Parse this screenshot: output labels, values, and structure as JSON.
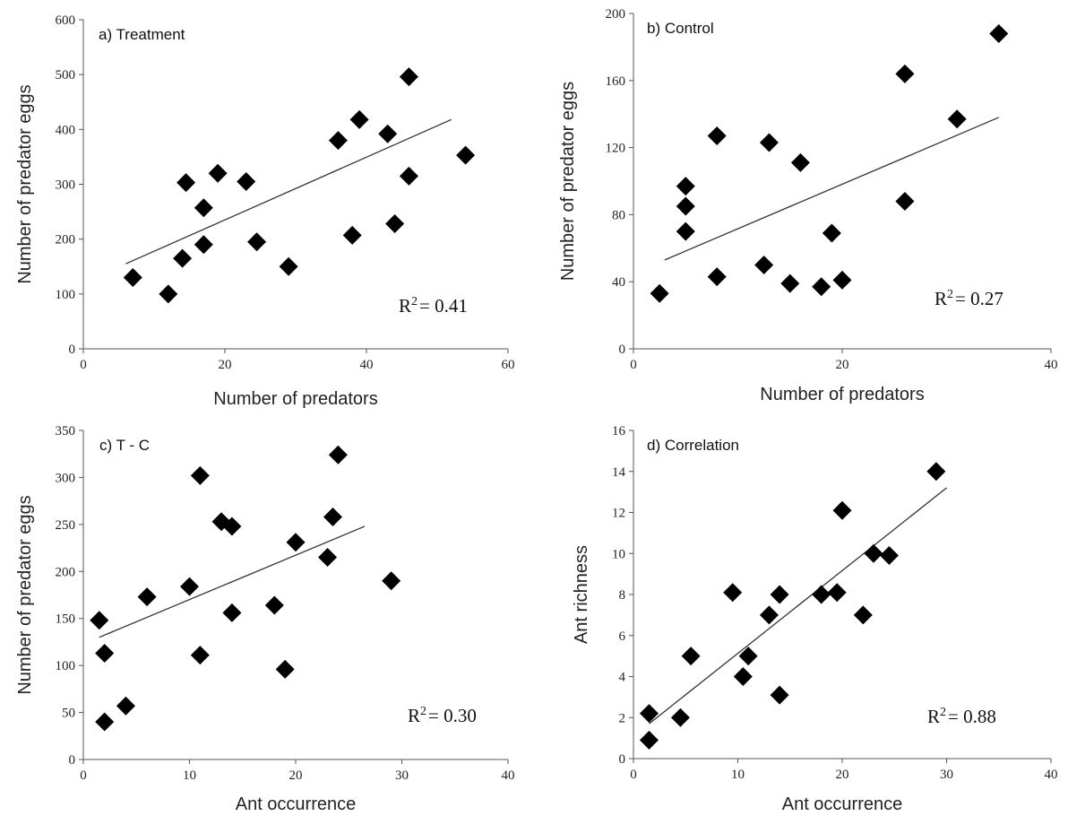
{
  "chart_data": [
    {
      "type": "scatter",
      "title": "a) Treatment",
      "xlabel": "Number of predators",
      "ylabel": "Number of predator eggs",
      "xlim": [
        0,
        60
      ],
      "ylim": [
        0,
        600
      ],
      "xticks": [
        0,
        20,
        40,
        60
      ],
      "yticks": [
        0,
        100,
        200,
        300,
        400,
        500,
        600
      ],
      "r2_label": "R",
      "r2_exp": "2",
      "r2_value": "= 0.41",
      "trendline": {
        "x": [
          6,
          52
        ],
        "y": [
          155,
          418
        ]
      },
      "points": [
        {
          "x": 7,
          "y": 130
        },
        {
          "x": 12,
          "y": 100
        },
        {
          "x": 14,
          "y": 165
        },
        {
          "x": 14.5,
          "y": 303
        },
        {
          "x": 17,
          "y": 190
        },
        {
          "x": 17,
          "y": 257
        },
        {
          "x": 19,
          "y": 320
        },
        {
          "x": 23,
          "y": 305
        },
        {
          "x": 24.5,
          "y": 195
        },
        {
          "x": 29,
          "y": 150
        },
        {
          "x": 36,
          "y": 380
        },
        {
          "x": 38,
          "y": 207
        },
        {
          "x": 39,
          "y": 418
        },
        {
          "x": 43,
          "y": 392
        },
        {
          "x": 44,
          "y": 228
        },
        {
          "x": 46,
          "y": 315
        },
        {
          "x": 46,
          "y": 496
        },
        {
          "x": 54,
          "y": 353
        }
      ]
    },
    {
      "type": "scatter",
      "title": "b) Control",
      "xlabel": "Number of predators",
      "ylabel": "Number of predator eggs",
      "xlim": [
        0,
        40
      ],
      "ylim": [
        0,
        200
      ],
      "xticks": [
        0,
        20,
        40
      ],
      "yticks": [
        0,
        40,
        80,
        120,
        160,
        200
      ],
      "r2_label": "R",
      "r2_exp": "2",
      "r2_value": "= 0.27",
      "trendline": {
        "x": [
          3,
          35
        ],
        "y": [
          53,
          138
        ]
      },
      "points": [
        {
          "x": 2.5,
          "y": 33
        },
        {
          "x": 5,
          "y": 97
        },
        {
          "x": 5,
          "y": 85
        },
        {
          "x": 5,
          "y": 70
        },
        {
          "x": 8,
          "y": 127
        },
        {
          "x": 8,
          "y": 43
        },
        {
          "x": 12.5,
          "y": 50
        },
        {
          "x": 13,
          "y": 123
        },
        {
          "x": 15,
          "y": 39
        },
        {
          "x": 16,
          "y": 111
        },
        {
          "x": 18,
          "y": 37
        },
        {
          "x": 19,
          "y": 69
        },
        {
          "x": 20,
          "y": 41
        },
        {
          "x": 26,
          "y": 164
        },
        {
          "x": 26,
          "y": 88
        },
        {
          "x": 31,
          "y": 137
        },
        {
          "x": 35,
          "y": 188
        }
      ]
    },
    {
      "type": "scatter",
      "title": "c) T - C",
      "xlabel": "Ant occurrence",
      "ylabel": "Number of predator eggs",
      "xlim": [
        0,
        40
      ],
      "ylim": [
        0,
        350
      ],
      "xticks": [
        0,
        10,
        20,
        30,
        40
      ],
      "yticks": [
        0,
        50,
        100,
        150,
        200,
        250,
        300,
        350
      ],
      "r2_label": "R",
      "r2_exp": "2",
      "r2_value": "= 0.30",
      "trendline": {
        "x": [
          1.5,
          26.5
        ],
        "y": [
          130,
          248
        ]
      },
      "points": [
        {
          "x": 1.5,
          "y": 148
        },
        {
          "x": 2,
          "y": 113
        },
        {
          "x": 2,
          "y": 40
        },
        {
          "x": 4,
          "y": 57
        },
        {
          "x": 6,
          "y": 173
        },
        {
          "x": 10,
          "y": 184
        },
        {
          "x": 11,
          "y": 302
        },
        {
          "x": 11,
          "y": 111
        },
        {
          "x": 13,
          "y": 253
        },
        {
          "x": 14,
          "y": 248
        },
        {
          "x": 14,
          "y": 156
        },
        {
          "x": 18,
          "y": 164
        },
        {
          "x": 19,
          "y": 96
        },
        {
          "x": 20,
          "y": 231
        },
        {
          "x": 23,
          "y": 215
        },
        {
          "x": 23.5,
          "y": 258
        },
        {
          "x": 24,
          "y": 324
        },
        {
          "x": 29,
          "y": 190
        }
      ]
    },
    {
      "type": "scatter",
      "title": "d) Correlation",
      "xlabel": "Ant occurrence",
      "ylabel": "Ant richness",
      "xlim": [
        0,
        40
      ],
      "ylim": [
        0,
        16
      ],
      "xticks": [
        0,
        10,
        20,
        30,
        40
      ],
      "yticks": [
        0,
        2,
        4,
        6,
        8,
        10,
        12,
        14,
        16
      ],
      "r2_label": "R",
      "r2_exp": "2",
      "r2_value": "= 0.88",
      "trendline": {
        "x": [
          1.5,
          30
        ],
        "y": [
          1.7,
          13.2
        ]
      },
      "points": [
        {
          "x": 1.5,
          "y": 2.2
        },
        {
          "x": 1.5,
          "y": 0.9
        },
        {
          "x": 4.5,
          "y": 2
        },
        {
          "x": 5.5,
          "y": 5
        },
        {
          "x": 9.5,
          "y": 8.1
        },
        {
          "x": 10.5,
          "y": 4
        },
        {
          "x": 11,
          "y": 5
        },
        {
          "x": 13,
          "y": 7
        },
        {
          "x": 14,
          "y": 8
        },
        {
          "x": 14,
          "y": 3.1
        },
        {
          "x": 18,
          "y": 8
        },
        {
          "x": 19.5,
          "y": 8.1
        },
        {
          "x": 20,
          "y": 12.1
        },
        {
          "x": 22,
          "y": 7
        },
        {
          "x": 23,
          "y": 10
        },
        {
          "x": 24.5,
          "y": 9.9
        },
        {
          "x": 29,
          "y": 14
        }
      ]
    }
  ]
}
